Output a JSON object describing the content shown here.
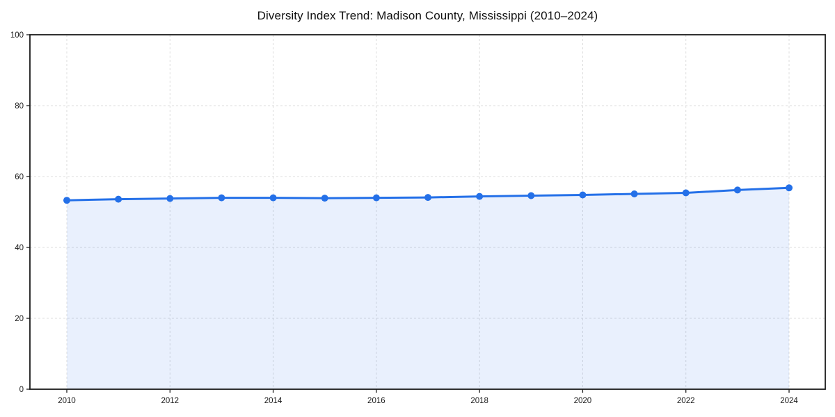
{
  "chart_data": {
    "type": "line",
    "title": "Diversity Index Trend: Madison County, Mississippi (2010–2024)",
    "x": [
      2010,
      2011,
      2012,
      2013,
      2014,
      2015,
      2016,
      2017,
      2018,
      2019,
      2020,
      2021,
      2022,
      2023,
      2024
    ],
    "series": [
      {
        "name": "Diversity Index",
        "values": [
          53.3,
          53.6,
          53.8,
          54.0,
          54.0,
          53.9,
          54.0,
          54.1,
          54.4,
          54.6,
          54.8,
          55.1,
          55.4,
          56.2,
          56.8
        ]
      }
    ],
    "x_tick_labels": [
      "2010",
      "2012",
      "2014",
      "2016",
      "2018",
      "2020",
      "2022",
      "2024"
    ],
    "y_ticks": [
      0,
      20,
      40,
      60,
      80,
      100
    ],
    "y_tick_labels": [
      "0",
      "20",
      "40",
      "60",
      "80",
      "100"
    ],
    "ylim": [
      0,
      100
    ],
    "xlim": [
      2009.3,
      2024.7
    ],
    "xlabel": "",
    "ylabel": "",
    "grid": "dashed, horizontal at y ticks and vertical at labeled x ticks",
    "legend": "none",
    "area_fill": true,
    "marker": "circle",
    "colors": {
      "line": "#2470e8",
      "marker": "#2470e8",
      "area_fill_rgba": "rgba(36,112,232,0.10)",
      "grid": "#dcdcdc",
      "axis": "#1a1a1a",
      "tick_text": "#1a1a1a",
      "title_text": "#111111",
      "background": "#ffffff"
    }
  }
}
